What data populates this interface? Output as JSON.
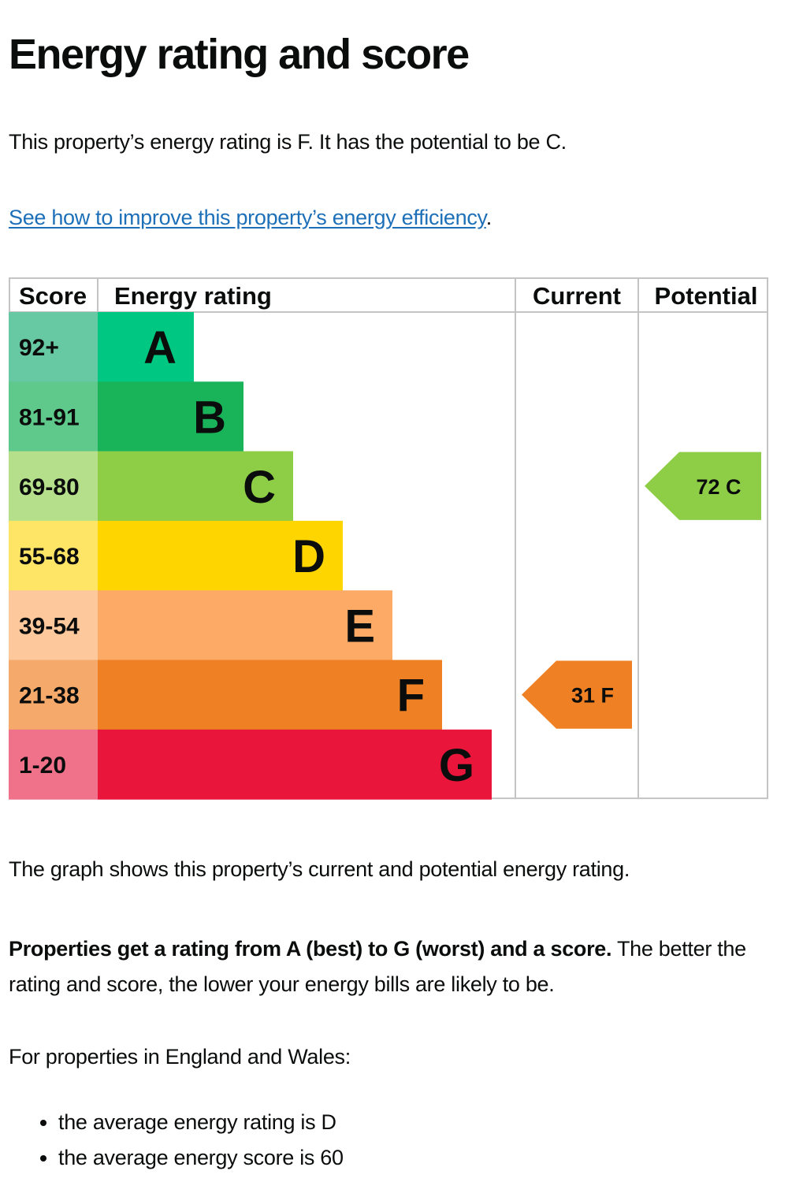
{
  "page": {
    "title": "Energy rating and score",
    "intro": "This property’s energy rating is F. It has the potential to be C.",
    "improve_link": "See how to improve this property’s energy efficiency",
    "improve_suffix": ".",
    "graph_note": "The graph shows this property’s current and potential energy rating.",
    "rating_explain_bold": "Properties get a rating from A (best) to G (worst) and a score.",
    "rating_explain_rest": " The better the rating and score, the lower your energy bills are likely to be.",
    "region_intro": "For properties in England and Wales:",
    "averages": [
      "the average energy rating is D",
      "the average energy score is 60"
    ]
  },
  "chart_data": {
    "type": "bar",
    "headers": {
      "score": "Score",
      "rating": "Energy rating",
      "current": "Current",
      "potential": "Potential"
    },
    "categories": [
      "A",
      "B",
      "C",
      "D",
      "E",
      "F",
      "G"
    ],
    "score_ranges": [
      "92+",
      "81-91",
      "69-80",
      "55-68",
      "39-54",
      "21-38",
      "1-20"
    ],
    "bands": [
      {
        "letter": "A",
        "range": "92+",
        "color": "#00c781",
        "light_color": "#66c9a3",
        "letter_color": "#0b0c0c"
      },
      {
        "letter": "B",
        "range": "81-91",
        "color": "#19b459",
        "light_color": "#5ec98b",
        "letter_color": "#0b0c0c"
      },
      {
        "letter": "C",
        "range": "69-80",
        "color": "#8dce46",
        "light_color": "#b5df8a",
        "letter_color": "#0b0c0c"
      },
      {
        "letter": "D",
        "range": "55-68",
        "color": "#ffd500",
        "light_color": "#ffe566",
        "letter_color": "#0b0c0c"
      },
      {
        "letter": "E",
        "range": "39-54",
        "color": "#fcaa65",
        "light_color": "#fdc89b",
        "letter_color": "#0b0c0c"
      },
      {
        "letter": "F",
        "range": "21-38",
        "color": "#ef8023",
        "light_color": "#f5a96a",
        "letter_color": "#0b0c0c"
      },
      {
        "letter": "G",
        "range": "1-20",
        "color": "#e9153b",
        "light_color": "#f0718a",
        "letter_color": "#0b0c0c"
      }
    ],
    "current": {
      "score": 31,
      "rating": "F",
      "label": "31 F",
      "color": "#ef8023"
    },
    "potential": {
      "score": 72,
      "rating": "C",
      "label": "72 C",
      "color": "#8dce46"
    }
  }
}
